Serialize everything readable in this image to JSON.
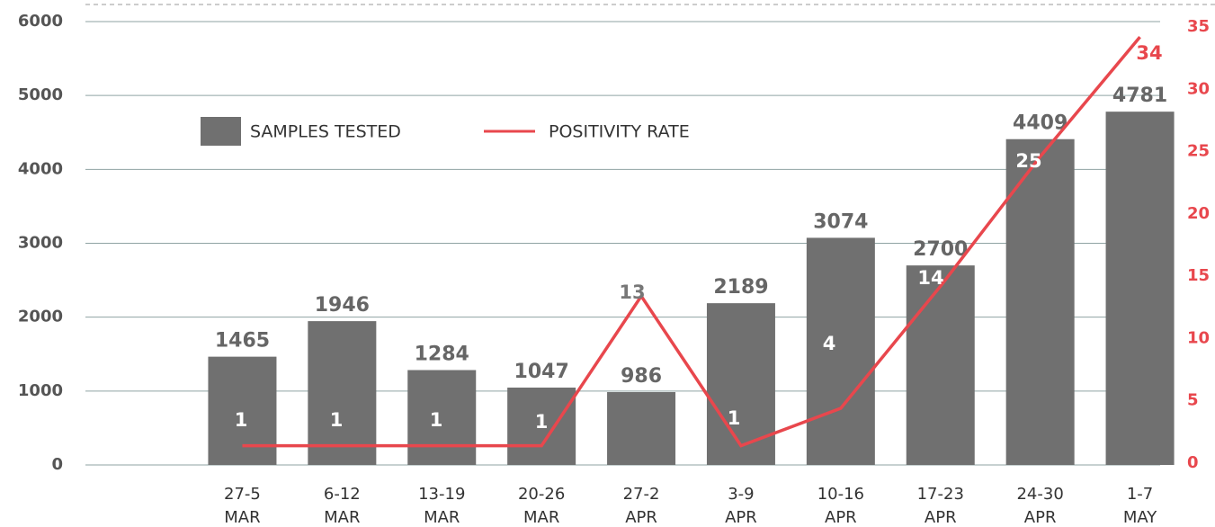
{
  "chart_data": {
    "type": "bar-line",
    "categories": [
      [
        "27-5",
        "MAR"
      ],
      [
        "6-12",
        "MAR"
      ],
      [
        "13-19",
        "MAR"
      ],
      [
        "20-26",
        "MAR"
      ],
      [
        "27-2",
        "APR"
      ],
      [
        "3-9",
        "APR"
      ],
      [
        "10-16",
        "APR"
      ],
      [
        "17-23",
        "APR"
      ],
      [
        "24-30",
        "APR"
      ],
      [
        "1-7",
        "MAY"
      ]
    ],
    "series": [
      {
        "name": "SAMPLES TESTED",
        "color": "#707070",
        "type": "bar",
        "values": [
          1465,
          1946,
          1284,
          1047,
          986,
          2189,
          3074,
          2700,
          4409,
          4781
        ]
      },
      {
        "name": "POSITIVITY RATE",
        "color": "#e8474d",
        "type": "line",
        "axis": "y2",
        "values": [
          1.4,
          1.4,
          1.4,
          1.4,
          13.4,
          1.4,
          4.4,
          14.2,
          24.6,
          34.2
        ],
        "value_labels": [
          "1",
          "1",
          "1",
          "1",
          "13",
          "1",
          "4",
          "14",
          "25",
          "34"
        ]
      }
    ],
    "ylim": [
      0,
      6000
    ],
    "yticks": [
      0,
      1000,
      2000,
      3000,
      4000,
      5000,
      6000
    ],
    "y2lim": [
      0,
      35
    ],
    "y2ticks": [
      0,
      5,
      10,
      15,
      20,
      25,
      30,
      35
    ],
    "grid": true
  }
}
